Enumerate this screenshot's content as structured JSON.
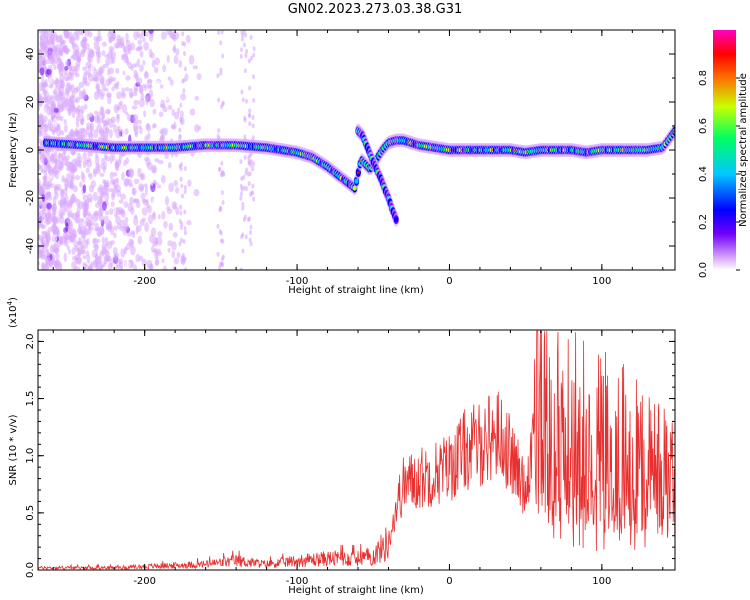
{
  "title": "GN02.2023.273.03.38.G31",
  "chart_data": [
    {
      "type": "heatmap",
      "xlabel": "Height of straight line (km)",
      "ylabel": "Frequency (Hz)",
      "xlim": [
        -270,
        148
      ],
      "ylim": [
        -50,
        50
      ],
      "xticks": [
        -200,
        -100,
        0,
        100
      ],
      "yticks": [
        -40,
        -20,
        0,
        20,
        40
      ],
      "colorbar": {
        "label": "Normalized spectral amplitude",
        "range": [
          0,
          1
        ],
        "ticks": [
          "0.0",
          "0.2",
          "0.4",
          "0.6",
          "0.8"
        ],
        "colors": [
          "#ffffff",
          "#d9a8ff",
          "#7000ff",
          "#0000ff",
          "#00c8ff",
          "#00ff60",
          "#c8ff00",
          "#ff7000",
          "#ff0000",
          "#ff00c0"
        ]
      },
      "ridge": {
        "x": [
          -265,
          -240,
          -220,
          -200,
          -180,
          -160,
          -140,
          -120,
          -100,
          -90,
          -80,
          -70,
          -62,
          -58,
          -52,
          -48,
          -44,
          -40,
          -35,
          -30,
          -20,
          -10,
          0,
          10,
          20,
          30,
          40,
          50,
          60,
          70,
          80,
          90,
          100,
          110,
          120,
          130,
          140,
          148
        ],
        "y": [
          3,
          2,
          1,
          1,
          1,
          2,
          2,
          1,
          -1,
          -3,
          -7,
          -12,
          -16,
          -4,
          -8,
          -4,
          0,
          3,
          4,
          4,
          2,
          1,
          0,
          0,
          0,
          0,
          0,
          -1,
          0,
          0,
          0,
          -1,
          0,
          0,
          0,
          0,
          1,
          8
        ]
      },
      "branch": {
        "x": [
          -60,
          -57,
          -50,
          -45,
          -42,
          -40,
          -38,
          -35
        ],
        "y": [
          8,
          6,
          -5,
          -12,
          -17,
          -20,
          -24,
          -29
        ]
      }
    },
    {
      "type": "line",
      "xlabel": "Height of straight line (km)",
      "ylabel": "SNR (10 * v/v)",
      "yscale_label": "(x10",
      "yscale_exp": "4",
      "yscale_close": ")",
      "xlim": [
        -270,
        148
      ],
      "ylim": [
        0,
        2.1
      ],
      "xticks": [
        -200,
        -100,
        0,
        100
      ],
      "yticks": [
        "0.0",
        "0.5",
        "1.0",
        "1.5",
        "2.0"
      ],
      "color": "#e83030",
      "envelope": {
        "x": [
          -270,
          -220,
          -200,
          -160,
          -140,
          -120,
          -100,
          -80,
          -60,
          -50,
          -40,
          -35,
          -30,
          -20,
          -10,
          0,
          10,
          20,
          30,
          35,
          40,
          45,
          50,
          55,
          60,
          65,
          70,
          80,
          90,
          100,
          110,
          120,
          130,
          140,
          148
        ],
        "y": [
          0.02,
          0.02,
          0.03,
          0.05,
          0.08,
          0.05,
          0.08,
          0.1,
          0.1,
          0.12,
          0.25,
          0.55,
          0.75,
          0.8,
          0.85,
          0.9,
          1.05,
          1.1,
          1.2,
          1.15,
          1.0,
          0.85,
          0.7,
          1.2,
          1.55,
          1.3,
          1.2,
          1.2,
          1.1,
          1.05,
          1.0,
          0.95,
          0.9,
          0.85,
          0.9
        ]
      }
    }
  ]
}
